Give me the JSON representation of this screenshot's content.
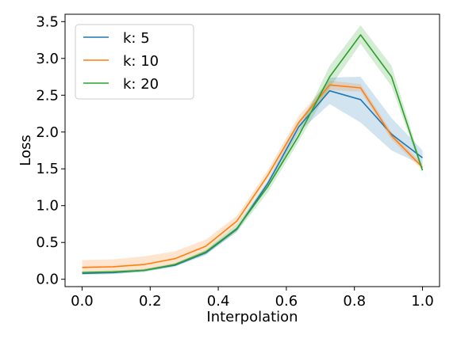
{
  "chart_data": {
    "type": "line",
    "title": "",
    "xlabel": "Interpolation",
    "ylabel": "Loss",
    "xlim": [
      -0.05,
      1.05
    ],
    "ylim": [
      -0.1,
      3.6
    ],
    "xticks": [
      0.0,
      0.2,
      0.4,
      0.6,
      0.8,
      1.0
    ],
    "xtick_labels": [
      "0.0",
      "0.2",
      "0.4",
      "0.6",
      "0.8",
      "1.0"
    ],
    "yticks": [
      0.0,
      0.5,
      1.0,
      1.5,
      2.0,
      2.5,
      3.0,
      3.5
    ],
    "ytick_labels": [
      "0.0",
      "0.5",
      "1.0",
      "1.5",
      "2.0",
      "2.5",
      "3.0",
      "3.5"
    ],
    "grid": false,
    "legend_position": "top-left",
    "x": [
      0.0,
      0.0909,
      0.1818,
      0.2727,
      0.3636,
      0.4545,
      0.5455,
      0.6364,
      0.7273,
      0.8182,
      0.9091,
      1.0
    ],
    "series": [
      {
        "name": "k: 5",
        "color": "#1f77b4",
        "values": [
          0.08,
          0.09,
          0.12,
          0.19,
          0.36,
          0.68,
          1.3,
          2.07,
          2.56,
          2.44,
          1.97,
          1.65
        ],
        "lower": [
          0.06,
          0.07,
          0.1,
          0.17,
          0.33,
          0.65,
          1.25,
          2.0,
          2.38,
          2.13,
          1.75,
          1.55
        ],
        "upper": [
          0.1,
          0.11,
          0.14,
          0.21,
          0.39,
          0.71,
          1.35,
          2.14,
          2.74,
          2.75,
          2.19,
          1.75
        ]
      },
      {
        "name": "k: 10",
        "color": "#ff7f0e",
        "values": [
          0.16,
          0.17,
          0.2,
          0.28,
          0.45,
          0.79,
          1.41,
          2.13,
          2.64,
          2.6,
          1.95,
          1.52
        ],
        "lower": [
          0.08,
          0.09,
          0.12,
          0.2,
          0.38,
          0.73,
          1.36,
          2.05,
          2.57,
          2.55,
          1.9,
          1.48
        ],
        "upper": [
          0.26,
          0.27,
          0.31,
          0.38,
          0.54,
          0.86,
          1.48,
          2.22,
          2.7,
          2.65,
          2.0,
          1.56
        ]
      },
      {
        "name": "k: 20",
        "color": "#2ca02c",
        "values": [
          0.09,
          0.1,
          0.12,
          0.2,
          0.37,
          0.69,
          1.26,
          1.95,
          2.75,
          3.32,
          2.75,
          1.48
        ],
        "lower": [
          0.07,
          0.08,
          0.1,
          0.18,
          0.34,
          0.64,
          1.18,
          1.87,
          2.6,
          3.2,
          2.62,
          1.45
        ],
        "upper": [
          0.11,
          0.12,
          0.14,
          0.22,
          0.4,
          0.74,
          1.33,
          2.03,
          2.9,
          3.45,
          2.9,
          1.52
        ]
      }
    ]
  }
}
